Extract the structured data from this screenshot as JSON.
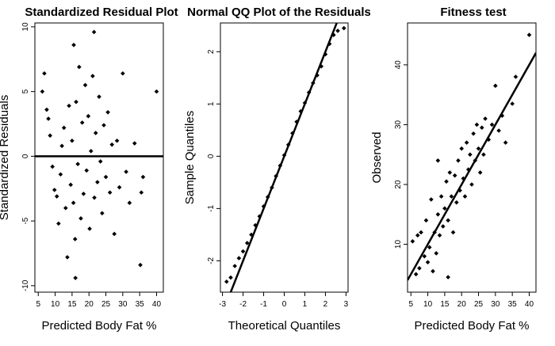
{
  "chart_data": [
    {
      "type": "scatter",
      "title": "Standardized Residual Plot",
      "xlabel": "Predicted Body Fat %",
      "ylabel": "Standardized Residuals",
      "xlim": [
        4,
        42
      ],
      "ylim": [
        -10.5,
        10.3
      ],
      "xticks": [
        5,
        10,
        15,
        20,
        25,
        30,
        35,
        40
      ],
      "yticks": [
        -10,
        -5,
        0,
        5,
        10
      ],
      "hline": 0,
      "points": [
        [
          6.2,
          5.0
        ],
        [
          6.8,
          6.4
        ],
        [
          7.5,
          3.6
        ],
        [
          8.0,
          2.9
        ],
        [
          8.5,
          1.6
        ],
        [
          9.2,
          -0.8
        ],
        [
          9.8,
          -2.6
        ],
        [
          10.5,
          -3.1
        ],
        [
          11.0,
          -5.2
        ],
        [
          11.6,
          -1.4
        ],
        [
          12.0,
          0.8
        ],
        [
          12.6,
          2.2
        ],
        [
          13.1,
          -4.0
        ],
        [
          13.6,
          -7.8
        ],
        [
          14.1,
          3.9
        ],
        [
          14.6,
          -2.2
        ],
        [
          15.0,
          1.2
        ],
        [
          15.4,
          -3.6
        ],
        [
          15.9,
          -6.4
        ],
        [
          16.2,
          4.2
        ],
        [
          16.7,
          -0.6
        ],
        [
          17.1,
          6.9
        ],
        [
          17.6,
          -4.8
        ],
        [
          18.0,
          2.6
        ],
        [
          18.4,
          -2.9
        ],
        [
          18.9,
          5.5
        ],
        [
          19.3,
          -1.1
        ],
        [
          19.8,
          3.1
        ],
        [
          20.2,
          -5.6
        ],
        [
          20.6,
          0.4
        ],
        [
          21.1,
          6.2
        ],
        [
          21.6,
          -3.2
        ],
        [
          22.0,
          1.8
        ],
        [
          22.5,
          -2.0
        ],
        [
          23.0,
          4.6
        ],
        [
          23.4,
          -0.4
        ],
        [
          23.9,
          -4.4
        ],
        [
          24.4,
          2.4
        ],
        [
          25.0,
          -1.6
        ],
        [
          25.6,
          3.4
        ],
        [
          26.2,
          -2.8
        ],
        [
          26.8,
          0.9
        ],
        [
          27.5,
          -6.0
        ],
        [
          28.3,
          1.2
        ],
        [
          29.0,
          -2.4
        ],
        [
          30.0,
          6.4
        ],
        [
          31.0,
          -1.2
        ],
        [
          32.0,
          -3.6
        ],
        [
          33.5,
          1.0
        ],
        [
          35.5,
          -2.8
        ],
        [
          15.5,
          8.6
        ],
        [
          21.5,
          9.6
        ],
        [
          16.0,
          -9.4
        ],
        [
          40.0,
          5.0
        ],
        [
          35.2,
          -8.4
        ],
        [
          36.0,
          -1.6
        ]
      ]
    },
    {
      "type": "scatter",
      "title": "Normal QQ Plot of the Residuals",
      "xlabel": "Theoretical Quantiles",
      "ylabel": "Sample Quantiles",
      "xlim": [
        -3.1,
        3.1
      ],
      "ylim": [
        -2.6,
        2.55
      ],
      "xticks": [
        -3,
        -2,
        -1,
        0,
        1,
        2,
        3
      ],
      "yticks": [
        -2,
        -1,
        0,
        1,
        2
      ],
      "reference_line": {
        "intercept": 0,
        "slope": 1
      },
      "points": [
        [
          -2.8,
          -2.4
        ],
        [
          -2.6,
          -2.32
        ],
        [
          -2.4,
          -2.1
        ],
        [
          -2.2,
          -1.95
        ],
        [
          -2.0,
          -1.82
        ],
        [
          -1.8,
          -1.66
        ],
        [
          -1.6,
          -1.5
        ],
        [
          -1.4,
          -1.32
        ],
        [
          -1.2,
          -1.15
        ],
        [
          -1.0,
          -0.96
        ],
        [
          -0.8,
          -0.78
        ],
        [
          -0.6,
          -0.6
        ],
        [
          -0.4,
          -0.38
        ],
        [
          -0.2,
          -0.18
        ],
        [
          0.0,
          0.02
        ],
        [
          0.2,
          0.22
        ],
        [
          0.4,
          0.44
        ],
        [
          0.6,
          0.66
        ],
        [
          0.8,
          0.86
        ],
        [
          1.0,
          1.02
        ],
        [
          1.2,
          1.22
        ],
        [
          1.4,
          1.4
        ],
        [
          1.6,
          1.55
        ],
        [
          1.8,
          1.72
        ],
        [
          2.0,
          1.95
        ],
        [
          2.2,
          2.15
        ],
        [
          2.4,
          2.32
        ],
        [
          2.6,
          2.4
        ],
        [
          2.9,
          2.45
        ]
      ]
    },
    {
      "type": "scatter",
      "title": "Fitness test",
      "xlabel": "Predicted Body Fat %",
      "ylabel": "Observed",
      "xlim": [
        4,
        42
      ],
      "ylim": [
        2,
        47
      ],
      "xticks": [
        5,
        10,
        15,
        20,
        25,
        30,
        35,
        40
      ],
      "yticks": [
        10,
        20,
        30,
        40
      ],
      "reference_line": {
        "intercept": 0,
        "slope": 1
      },
      "points": [
        [
          5.5,
          10.5
        ],
        [
          6.5,
          5.0
        ],
        [
          7.0,
          11.5
        ],
        [
          7.5,
          6.0
        ],
        [
          8.0,
          12.0
        ],
        [
          9.0,
          8.0
        ],
        [
          9.5,
          14.0
        ],
        [
          10.0,
          7.0
        ],
        [
          10.5,
          9.5
        ],
        [
          11.0,
          17.5
        ],
        [
          11.5,
          5.5
        ],
        [
          12.0,
          12.0
        ],
        [
          12.5,
          8.5
        ],
        [
          13.0,
          15.0
        ],
        [
          13.5,
          11.5
        ],
        [
          14.0,
          18.0
        ],
        [
          14.5,
          13.0
        ],
        [
          15.0,
          16.0
        ],
        [
          15.5,
          20.5
        ],
        [
          16.0,
          14.0
        ],
        [
          16.5,
          22.0
        ],
        [
          17.0,
          18.0
        ],
        [
          17.5,
          12.0
        ],
        [
          18.0,
          21.5
        ],
        [
          18.5,
          17.0
        ],
        [
          19.0,
          24.0
        ],
        [
          19.5,
          19.0
        ],
        [
          20.0,
          26.0
        ],
        [
          20.5,
          21.0
        ],
        [
          21.0,
          18.0
        ],
        [
          21.5,
          27.0
        ],
        [
          22.0,
          22.5
        ],
        [
          22.5,
          25.0
        ],
        [
          23.0,
          20.0
        ],
        [
          23.5,
          28.5
        ],
        [
          24.0,
          24.0
        ],
        [
          24.5,
          30.0
        ],
        [
          25.0,
          26.0
        ],
        [
          25.5,
          22.0
        ],
        [
          26.0,
          29.5
        ],
        [
          26.5,
          25.0
        ],
        [
          27.0,
          31.0
        ],
        [
          28.0,
          27.5
        ],
        [
          29.0,
          30.0
        ],
        [
          30.0,
          36.5
        ],
        [
          31.0,
          29.0
        ],
        [
          32.0,
          31.5
        ],
        [
          33.0,
          27.0
        ],
        [
          35.0,
          33.5
        ],
        [
          36.0,
          38.0
        ],
        [
          40.0,
          45.0
        ],
        [
          16.0,
          4.5
        ],
        [
          13.0,
          24.0
        ]
      ]
    }
  ]
}
